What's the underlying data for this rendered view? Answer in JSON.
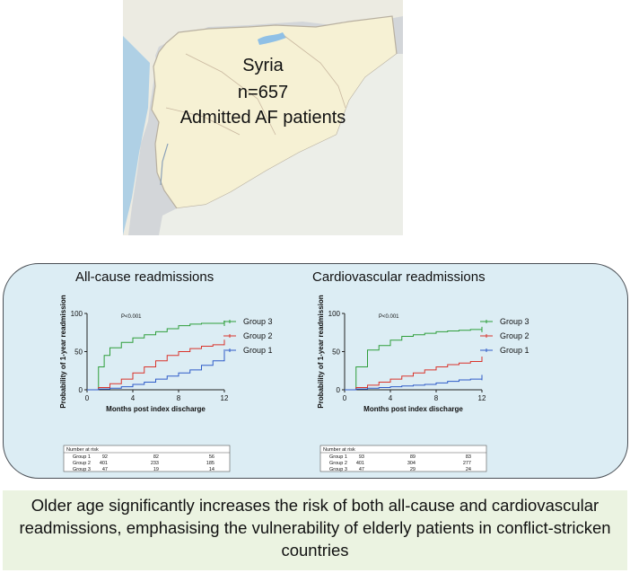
{
  "map": {
    "lines": [
      "Syria",
      "n=657",
      "Admitted AF patients"
    ],
    "colors": {
      "sea": "#c9ccd0",
      "land": "#f4f1d6",
      "border": "#b8b0a0",
      "water": "#9cc8e8"
    }
  },
  "caption": "Older age significantly increases the risk of both all-cause and cardiovascular readmissions, emphasising the vulnerability of elderly patients in conflict-stricken countries",
  "chart_data": [
    {
      "type": "line",
      "title": "All-cause readmissions",
      "xlabel": "Months post index discharge",
      "ylabel": "Probability of 1-year readmission",
      "annotation": "P<0.001",
      "xlim": [
        0,
        12
      ],
      "ylim": [
        0,
        100
      ],
      "xticks": [
        0,
        4,
        8,
        12
      ],
      "yticks": [
        0,
        50,
        100
      ],
      "series": [
        {
          "name": "Group 3",
          "color": "#2e9e3a",
          "x": [
            0,
            1,
            1,
            1.5,
            2,
            3,
            4,
            5,
            6,
            7,
            8,
            9,
            10,
            11,
            12
          ],
          "y": [
            0,
            0,
            30,
            45,
            55,
            62,
            68,
            72,
            76,
            80,
            84,
            86,
            87,
            87,
            87
          ]
        },
        {
          "name": "Group 2",
          "color": "#d9342b",
          "x": [
            0,
            1,
            2,
            3,
            4,
            5,
            6,
            7,
            8,
            9,
            10,
            11,
            12
          ],
          "y": [
            0,
            3,
            8,
            14,
            22,
            30,
            38,
            45,
            50,
            54,
            57,
            59,
            62
          ]
        },
        {
          "name": "Group 1",
          "color": "#2f5cc8",
          "x": [
            0,
            1,
            2,
            3,
            4,
            5,
            6,
            7,
            8,
            9,
            10,
            11,
            12
          ],
          "y": [
            0,
            1,
            2,
            4,
            7,
            10,
            14,
            18,
            22,
            26,
            32,
            38,
            47
          ]
        }
      ],
      "risk_table": {
        "header": "Number at risk",
        "rows": [
          {
            "label": "Group 1",
            "values": [
              "92",
              "82",
              "56"
            ]
          },
          {
            "label": "Group 2",
            "values": [
              "401",
              "233",
              "185"
            ]
          },
          {
            "label": "Group 3",
            "values": [
              "47",
              "19",
              "14"
            ]
          }
        ]
      }
    },
    {
      "type": "line",
      "title": "Cardiovascular readmissions",
      "xlabel": "Months post index discharge",
      "ylabel": "Probability of 1-year readmission",
      "annotation": "P<0.001",
      "xlim": [
        0,
        12
      ],
      "ylim": [
        0,
        100
      ],
      "xticks": [
        0,
        4,
        8,
        12
      ],
      "yticks": [
        0,
        50,
        100
      ],
      "series": [
        {
          "name": "Group 3",
          "color": "#2e9e3a",
          "x": [
            0,
            1,
            1,
            2,
            3,
            4,
            5,
            6,
            7,
            8,
            9,
            10,
            11,
            12
          ],
          "y": [
            0,
            0,
            30,
            52,
            58,
            65,
            70,
            72,
            74,
            76,
            77,
            78,
            79,
            79
          ]
        },
        {
          "name": "Group 2",
          "color": "#d9342b",
          "x": [
            0,
            1,
            2,
            3,
            4,
            5,
            6,
            7,
            8,
            9,
            10,
            11,
            12
          ],
          "y": [
            0,
            3,
            6,
            10,
            14,
            18,
            22,
            26,
            30,
            33,
            35,
            37,
            40
          ]
        },
        {
          "name": "Group 1",
          "color": "#2f5cc8",
          "x": [
            0,
            1,
            2,
            3,
            4,
            5,
            6,
            7,
            8,
            9,
            10,
            11,
            12
          ],
          "y": [
            0,
            1,
            2,
            3,
            4,
            5,
            6,
            7,
            9,
            11,
            13,
            14,
            16
          ]
        }
      ],
      "risk_table": {
        "header": "Number at risk",
        "rows": [
          {
            "label": "Group 1",
            "values": [
              "93",
              "89",
              "83"
            ]
          },
          {
            "label": "Group 2",
            "values": [
              "401",
              "304",
              "277"
            ]
          },
          {
            "label": "Group 3",
            "values": [
              "47",
              "29",
              "24"
            ]
          }
        ]
      }
    }
  ]
}
